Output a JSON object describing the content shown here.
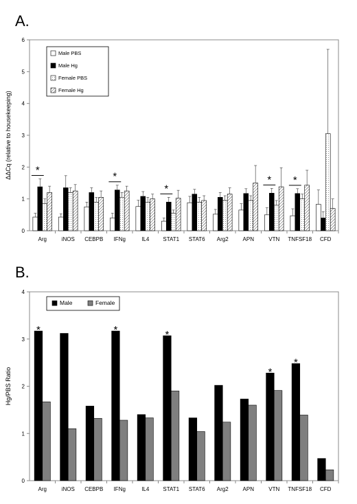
{
  "chart_data": [
    {
      "type": "bar",
      "panel_label": "A.",
      "categories": [
        "Arg",
        "iNOS",
        "CEBPB",
        "IFNg",
        "IL4",
        "STAT1",
        "STAT6",
        "Arg2",
        "APN",
        "VTN",
        "TNFSF18",
        "CFD"
      ],
      "series": [
        {
          "name": "Male PBS",
          "color": "#ffffff",
          "pattern": "none",
          "values": [
            0.43,
            0.43,
            0.75,
            0.4,
            0.76,
            0.3,
            0.88,
            0.52,
            0.65,
            0.5,
            0.47,
            0.83
          ],
          "errors": [
            0.12,
            0.1,
            0.15,
            0.15,
            0.2,
            0.1,
            0.2,
            0.15,
            0.2,
            0.22,
            0.22,
            0.45
          ]
        },
        {
          "name": "Male Hg",
          "color": "#000000",
          "pattern": "none",
          "values": [
            1.38,
            1.35,
            1.2,
            1.28,
            1.08,
            0.9,
            1.15,
            1.05,
            1.17,
            1.18,
            1.17,
            0.4
          ],
          "errors": [
            0.25,
            0.38,
            0.15,
            0.15,
            0.15,
            0.15,
            0.15,
            0.15,
            0.15,
            0.15,
            0.15,
            0.2
          ]
        },
        {
          "name": "Female PBS",
          "color": "#ffffff",
          "pattern": "dots",
          "values": [
            0.85,
            1.2,
            0.9,
            1.05,
            0.9,
            0.55,
            0.9,
            0.95,
            0.95,
            0.8,
            1.0,
            3.05
          ],
          "errors": [
            0.15,
            0.15,
            0.15,
            0.15,
            0.15,
            0.1,
            0.15,
            0.15,
            0.15,
            0.15,
            0.15,
            2.65
          ]
        },
        {
          "name": "Female Hg",
          "color": "#ffffff",
          "pattern": "hatch",
          "values": [
            1.2,
            1.25,
            1.05,
            1.25,
            1.0,
            1.02,
            0.95,
            1.15,
            1.5,
            1.38,
            1.43,
            0.7
          ],
          "errors": [
            0.2,
            0.2,
            0.2,
            0.15,
            0.15,
            0.25,
            0.15,
            0.2,
            0.55,
            0.6,
            0.47,
            0.3
          ]
        }
      ],
      "significant": [
        "Arg",
        "IFNg",
        "STAT1",
        "VTN",
        "TNFSF18"
      ],
      "significance_marker": "*",
      "ylabel": "ΔΔCq (relative to housekeeping)",
      "xlabel": "",
      "ylim": [
        0,
        6
      ],
      "yticks": [
        "0",
        "1",
        "2",
        "3",
        "4",
        "5",
        "6"
      ],
      "grid": false,
      "legend_position": "top-left"
    },
    {
      "type": "bar",
      "panel_label": "B.",
      "categories": [
        "Arg",
        "iNOS",
        "CEBPB",
        "IFNg",
        "IL4",
        "STAT1",
        "STAT6",
        "Arg2",
        "APN",
        "VTN",
        "TNFSF18",
        "CFD"
      ],
      "series": [
        {
          "name": "Male",
          "color": "#000000",
          "values": [
            3.17,
            3.12,
            1.58,
            3.17,
            1.4,
            3.07,
            1.33,
            2.02,
            1.73,
            2.28,
            2.48,
            0.47
          ]
        },
        {
          "name": "Female",
          "color": "#7f7f7f",
          "values": [
            1.67,
            1.1,
            1.32,
            1.28,
            1.33,
            1.9,
            1.04,
            1.24,
            1.6,
            1.91,
            1.39,
            0.23
          ]
        }
      ],
      "significant": [
        "Arg",
        "IFNg",
        "STAT1",
        "VTN",
        "TNFSF18"
      ],
      "significance_marker": "*",
      "ylabel": "Hg/PBS Ratio",
      "xlabel": "",
      "ylim": [
        0,
        4
      ],
      "yticks": [
        "0",
        "1",
        "2",
        "3",
        "4"
      ],
      "grid": false,
      "legend_position": "top-left"
    }
  ]
}
